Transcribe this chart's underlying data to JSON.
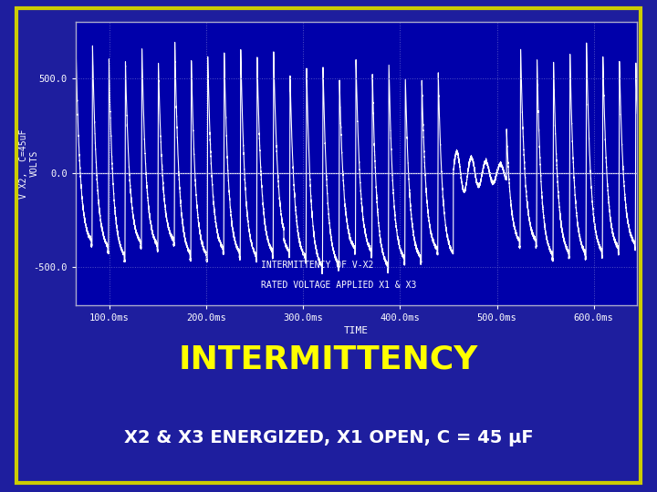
{
  "bg_color": "#1E1E9E",
  "plot_bg_color": "#0000AA",
  "border_color": "#CCCC00",
  "line_color": "#FFFFFF",
  "grid_color": "#3333AA",
  "tick_color": "#FFFFFF",
  "title_color": "#FFFF00",
  "subtitle_color": "#FFFFFF",
  "title_text": "INTERMITTENCY",
  "subtitle_text": "X2 & X3 ENERGIZED, X1 OPEN, C = 45 μF",
  "xlabel": "TIME",
  "ylabel": "V X2,  C=45uF\nVOLTS",
  "inner_label1": "INTERMITTENCY OF V-X2",
  "inner_label2": "RATED VOLTAGE APPLIED X1 & X3",
  "yticks": [
    -500.0,
    0.0,
    500.0
  ],
  "xtick_labels": [
    "100.0ms",
    "200.0ms",
    "300.0ms",
    "400.0ms",
    "500.0ms",
    "600.0ms"
  ],
  "xtick_vals": [
    0.1,
    0.2,
    0.3,
    0.4,
    0.5,
    0.6
  ],
  "xlim": [
    0.065,
    0.645
  ],
  "ylim": [
    -700,
    800
  ],
  "figsize": [
    7.2,
    5.4
  ],
  "dpi": 100
}
